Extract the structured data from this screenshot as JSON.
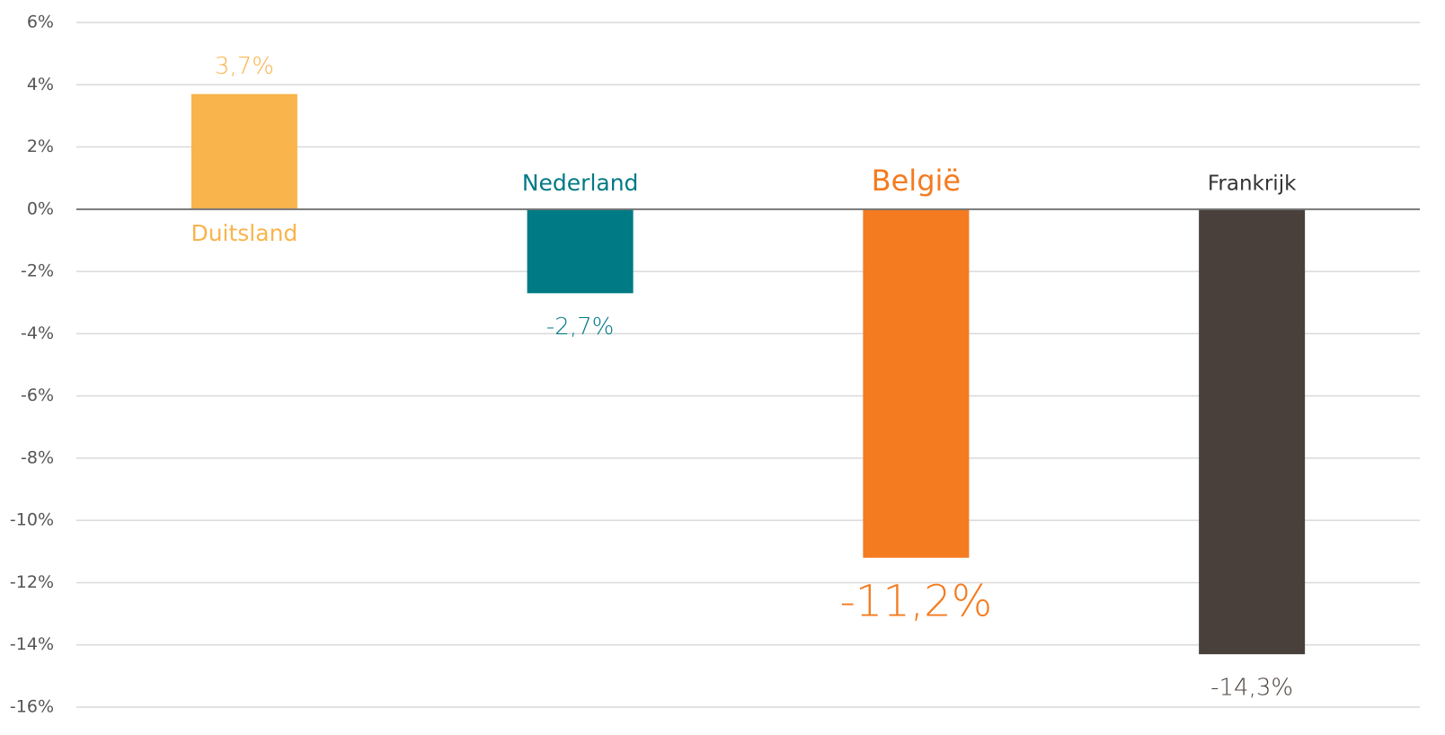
{
  "chart_data": {
    "type": "bar",
    "categories": [
      "Duitsland",
      "Nederland",
      "België",
      "Frankrijk"
    ],
    "values": [
      3.7,
      -2.7,
      -11.2,
      -14.3
    ],
    "value_labels": [
      "3,7%",
      "-2,7%",
      "-11,2%",
      "-14,3%"
    ],
    "colors": [
      "#f9b44c",
      "#007a85",
      "#f47b20",
      "#4a403b"
    ],
    "ylim": [
      -16,
      6
    ],
    "yticks": [
      {
        "value": 6,
        "label": "6%"
      },
      {
        "value": 4,
        "label": "4%"
      },
      {
        "value": 2,
        "label": "2%"
      },
      {
        "value": 0,
        "label": "0%"
      },
      {
        "value": -2,
        "label": "-2%"
      },
      {
        "value": -4,
        "label": "-4%"
      },
      {
        "value": -6,
        "label": "-6%"
      },
      {
        "value": -8,
        "label": "-8%"
      },
      {
        "value": -10,
        "label": "-10%"
      },
      {
        "value": -12,
        "label": "-12%"
      },
      {
        "value": -14,
        "label": "-14%"
      },
      {
        "value": -16,
        "label": "-16%"
      }
    ],
    "grid": true
  }
}
